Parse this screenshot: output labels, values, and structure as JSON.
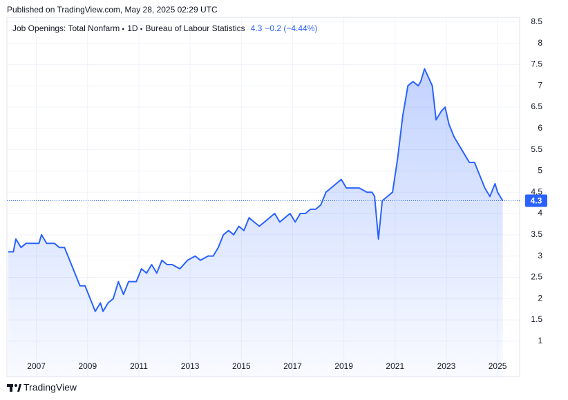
{
  "published": "Published on TradingView.com, May 28, 2025 02:29 UTC",
  "brand": "TradingView",
  "chart_data": {
    "type": "line",
    "interval": "1D",
    "source": "Bureau of Labour Statistics",
    "change_label": "−0.2 (−4.44%)",
    "x": [
      2005.9,
      2006.1,
      2006.2,
      2006.4,
      2006.6,
      2006.9,
      2007.1,
      2007.2,
      2007.4,
      2007.7,
      2007.9,
      2008.1,
      2008.3,
      2008.5,
      2008.7,
      2008.9,
      2009.1,
      2009.3,
      2009.5,
      2009.6,
      2009.8,
      2010.0,
      2010.2,
      2010.4,
      2010.6,
      2010.9,
      2011.1,
      2011.3,
      2011.5,
      2011.7,
      2011.9,
      2012.1,
      2012.3,
      2012.6,
      2012.9,
      2013.2,
      2013.4,
      2013.7,
      2013.9,
      2014.1,
      2014.3,
      2014.5,
      2014.7,
      2014.9,
      2015.1,
      2015.3,
      2015.5,
      2015.7,
      2015.9,
      2016.1,
      2016.3,
      2016.5,
      2016.7,
      2016.9,
      2017.1,
      2017.3,
      2017.5,
      2017.7,
      2017.9,
      2018.1,
      2018.3,
      2018.5,
      2018.7,
      2018.9,
      2019.1,
      2019.3,
      2019.6,
      2019.9,
      2020.1,
      2020.2,
      2020.35,
      2020.5,
      2020.7,
      2020.9,
      2021.1,
      2021.3,
      2021.5,
      2021.7,
      2021.9,
      2022.0,
      2022.15,
      2022.3,
      2022.45,
      2022.6,
      2022.8,
      2022.95,
      2023.1,
      2023.3,
      2023.5,
      2023.7,
      2023.9,
      2024.1,
      2024.3,
      2024.5,
      2024.7,
      2024.9,
      2025.0,
      2025.2
    ],
    "series": [
      {
        "name": "Job Openings: Total Nonfarm",
        "color": "#2962ff",
        "values": [
          3.1,
          3.1,
          3.4,
          3.2,
          3.3,
          3.3,
          3.3,
          3.5,
          3.3,
          3.3,
          3.2,
          3.2,
          2.9,
          2.6,
          2.3,
          2.3,
          2.0,
          1.7,
          1.9,
          1.7,
          1.9,
          2.0,
          2.4,
          2.1,
          2.4,
          2.4,
          2.7,
          2.6,
          2.8,
          2.6,
          2.9,
          2.8,
          2.8,
          2.7,
          2.9,
          3.0,
          2.9,
          3.0,
          3.0,
          3.2,
          3.5,
          3.6,
          3.5,
          3.7,
          3.6,
          3.9,
          3.8,
          3.7,
          3.8,
          3.9,
          4.0,
          3.8,
          3.9,
          4.0,
          3.8,
          4.0,
          4.0,
          4.1,
          4.1,
          4.2,
          4.5,
          4.6,
          4.7,
          4.8,
          4.6,
          4.6,
          4.6,
          4.5,
          4.5,
          4.4,
          3.4,
          4.3,
          4.4,
          4.5,
          5.3,
          6.3,
          7.0,
          7.1,
          7.0,
          7.1,
          7.4,
          7.2,
          7.0,
          6.2,
          6.4,
          6.5,
          6.1,
          5.8,
          5.6,
          5.4,
          5.2,
          5.2,
          4.9,
          4.6,
          4.4,
          4.7,
          4.5,
          4.3
        ]
      }
    ],
    "xlim": [
      2005.85,
      2025.86
    ],
    "xticks": [
      2007,
      2009,
      2011,
      2013,
      2015,
      2017,
      2019,
      2021,
      2023,
      2025
    ],
    "ylim": [
      0.17,
      8.61
    ],
    "yticks": [
      1,
      1.5,
      2,
      2.5,
      3,
      3.5,
      4,
      4.5,
      5,
      5.5,
      6,
      6.5,
      7,
      7.5,
      8,
      8.5
    ],
    "grid": true
  }
}
